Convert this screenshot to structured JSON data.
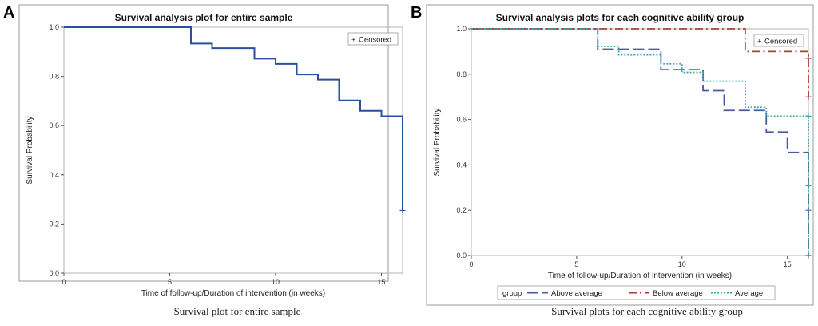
{
  "chart_data": [
    {
      "panel": "A",
      "type": "line",
      "title": "Survival analysis plot for entire sample",
      "xlabel": "Time of follow-up/Duration of intervention (in weeks)",
      "ylabel": "Survival Probability",
      "xlim": [
        0,
        16
      ],
      "ylim": [
        0,
        1
      ],
      "xticks": [
        0,
        5,
        10,
        15
      ],
      "xtick_labels": [
        "0",
        "5",
        "10",
        "15"
      ],
      "yticks": [
        0,
        0.2,
        0.4,
        0.6,
        0.8,
        1.0
      ],
      "ytick_labels": [
        "0.0",
        "0.2",
        "0.4",
        "0.6",
        "0.8",
        "1.0"
      ],
      "legend": {
        "label": "Censored",
        "marker": "+",
        "placement": "top-right"
      },
      "caption": "Survival plot for entire sample",
      "series": [
        {
          "name": "entire sample",
          "color": "#2a4f9c",
          "dash": "solid",
          "x": [
            0,
            6,
            7,
            9,
            10,
            11,
            12,
            13,
            14,
            15,
            16
          ],
          "y": [
            1.0,
            0.934,
            0.915,
            0.872,
            0.851,
            0.808,
            0.787,
            0.702,
            0.66,
            0.638,
            0.255
          ],
          "censored": [
            {
              "x": 16,
              "y": 0.255
            }
          ]
        }
      ]
    },
    {
      "panel": "B",
      "type": "line",
      "title": "Survival analysis plots for each cognitive ability group",
      "xlabel": "Time of follow-up/Duration of intervention (in weeks)",
      "ylabel": "Survival Probability",
      "xlim": [
        0,
        16
      ],
      "ylim": [
        0,
        1
      ],
      "xticks": [
        0,
        5,
        10,
        15
      ],
      "xtick_labels": [
        "0",
        "5",
        "10",
        "15"
      ],
      "yticks": [
        0,
        0.2,
        0.4,
        0.6,
        0.8,
        1.0
      ],
      "ytick_labels": [
        "0.0",
        "0.2",
        "0.4",
        "0.6",
        "0.8",
        "1.0"
      ],
      "legend": {
        "label": "Censored",
        "marker": "+",
        "placement": "top-right"
      },
      "group_legend": {
        "title": "group",
        "placement": "bottom"
      },
      "caption": "Survival plots for each cognitive ability group",
      "series": [
        {
          "name": "Above average",
          "color": "#4a5a9c",
          "dash": "long-dash",
          "x": [
            0,
            6,
            8,
            9,
            10,
            11,
            12,
            14,
            15,
            16
          ],
          "y": [
            1.0,
            0.91,
            0.91,
            0.82,
            0.82,
            0.727,
            0.64,
            0.545,
            0.455,
            0.0
          ],
          "censored": [
            {
              "x": 16,
              "y": 0.2
            },
            {
              "x": 16,
              "y": 0.0
            }
          ]
        },
        {
          "name": "Below average",
          "color": "#b23a32",
          "dash": "dash-dot",
          "x": [
            0,
            13,
            16
          ],
          "y": [
            1.0,
            0.9,
            0.7
          ],
          "censored": [
            {
              "x": 16,
              "y": 0.7
            },
            {
              "x": 16,
              "y": 0.87
            }
          ]
        },
        {
          "name": "Average",
          "color": "#3aa5a8",
          "dash": "dotted",
          "x": [
            0,
            6,
            7,
            9,
            10,
            11,
            13,
            14,
            16
          ],
          "y": [
            1.0,
            0.923,
            0.885,
            0.846,
            0.808,
            0.769,
            0.654,
            0.615,
            0.0
          ],
          "censored": [
            {
              "x": 16,
              "y": 0.615
            },
            {
              "x": 16,
              "y": 0.308
            }
          ]
        }
      ]
    }
  ]
}
